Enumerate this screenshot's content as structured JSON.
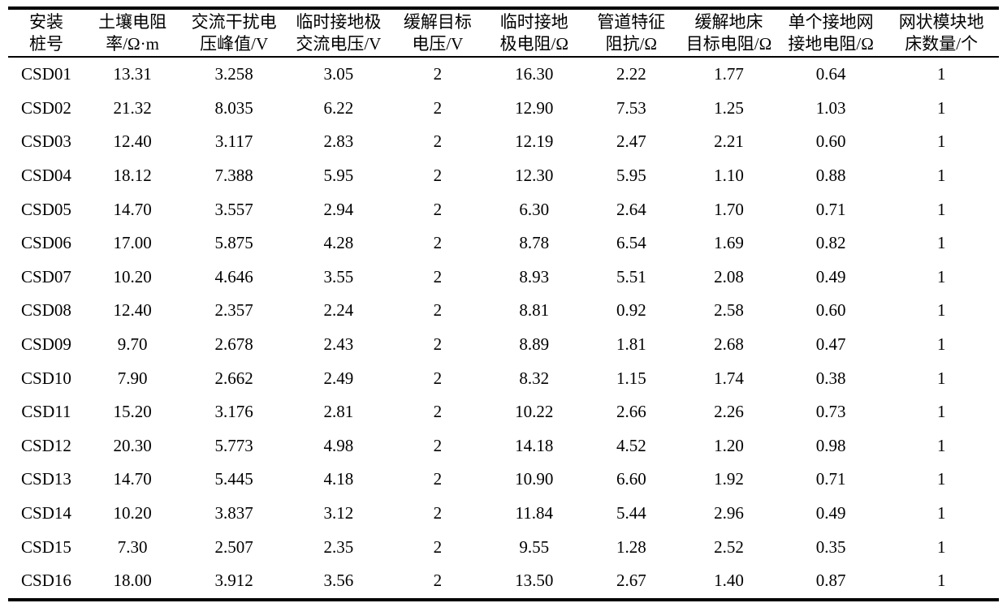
{
  "colors": {
    "background": "#ffffff",
    "text": "#000000",
    "rule": "#000000"
  },
  "table": {
    "columns": [
      {
        "line1": "安装",
        "line2": "桩号"
      },
      {
        "line1": "土壤电阻",
        "line2": "率/Ω·m"
      },
      {
        "line1": "交流干扰电",
        "line2": "压峰值/V"
      },
      {
        "line1": "临时接地极",
        "line2": "交流电压/V"
      },
      {
        "line1": "缓解目标",
        "line2": "电压/V"
      },
      {
        "line1": "临时接地",
        "line2": "极电阻/Ω"
      },
      {
        "line1": "管道特征",
        "line2": "阻抗/Ω"
      },
      {
        "line1": "缓解地床",
        "line2": "目标电阻/Ω"
      },
      {
        "line1": "单个接地网",
        "line2": "接地电阻/Ω"
      },
      {
        "line1": "网状模块地",
        "line2": "床数量/个"
      }
    ],
    "rows": [
      [
        "CSD01",
        "13.31",
        "3.258",
        "3.05",
        "2",
        "16.30",
        "2.22",
        "1.77",
        "0.64",
        "1"
      ],
      [
        "CSD02",
        "21.32",
        "8.035",
        "6.22",
        "2",
        "12.90",
        "7.53",
        "1.25",
        "1.03",
        "1"
      ],
      [
        "CSD03",
        "12.40",
        "3.117",
        "2.83",
        "2",
        "12.19",
        "2.47",
        "2.21",
        "0.60",
        "1"
      ],
      [
        "CSD04",
        "18.12",
        "7.388",
        "5.95",
        "2",
        "12.30",
        "5.95",
        "1.10",
        "0.88",
        "1"
      ],
      [
        "CSD05",
        "14.70",
        "3.557",
        "2.94",
        "2",
        "6.30",
        "2.64",
        "1.70",
        "0.71",
        "1"
      ],
      [
        "CSD06",
        "17.00",
        "5.875",
        "4.28",
        "2",
        "8.78",
        "6.54",
        "1.69",
        "0.82",
        "1"
      ],
      [
        "CSD07",
        "10.20",
        "4.646",
        "3.55",
        "2",
        "8.93",
        "5.51",
        "2.08",
        "0.49",
        "1"
      ],
      [
        "CSD08",
        "12.40",
        "2.357",
        "2.24",
        "2",
        "8.81",
        "0.92",
        "2.58",
        "0.60",
        "1"
      ],
      [
        "CSD09",
        "9.70",
        "2.678",
        "2.43",
        "2",
        "8.89",
        "1.81",
        "2.68",
        "0.47",
        "1"
      ],
      [
        "CSD10",
        "7.90",
        "2.662",
        "2.49",
        "2",
        "8.32",
        "1.15",
        "1.74",
        "0.38",
        "1"
      ],
      [
        "CSD11",
        "15.20",
        "3.176",
        "2.81",
        "2",
        "10.22",
        "2.66",
        "2.26",
        "0.73",
        "1"
      ],
      [
        "CSD12",
        "20.30",
        "5.773",
        "4.98",
        "2",
        "14.18",
        "4.52",
        "1.20",
        "0.98",
        "1"
      ],
      [
        "CSD13",
        "14.70",
        "5.445",
        "4.18",
        "2",
        "10.90",
        "6.60",
        "1.92",
        "0.71",
        "1"
      ],
      [
        "CSD14",
        "10.20",
        "3.837",
        "3.12",
        "2",
        "11.84",
        "5.44",
        "2.96",
        "0.49",
        "1"
      ],
      [
        "CSD15",
        "7.30",
        "2.507",
        "2.35",
        "2",
        "9.55",
        "1.28",
        "2.52",
        "0.35",
        "1"
      ],
      [
        "CSD16",
        "18.00",
        "3.912",
        "3.56",
        "2",
        "13.50",
        "2.67",
        "1.40",
        "0.87",
        "1"
      ]
    ]
  }
}
